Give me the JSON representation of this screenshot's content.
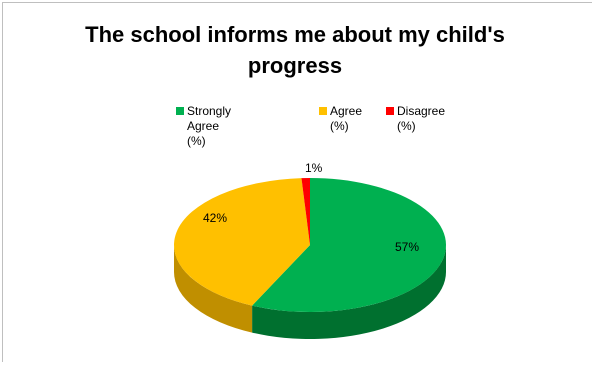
{
  "chart_data": {
    "type": "pie",
    "title_line1": "The school informs me about my child's",
    "title_line2": "progress",
    "legend_position": "top",
    "legend": [
      {
        "line1": "Strongly Agree (%)",
        "line2": "",
        "color": "#00b050"
      },
      {
        "line1": "Agree",
        "line2": "(%)",
        "color": "#ffc000"
      },
      {
        "line1": "Disagree",
        "line2": "(%)",
        "color": "#ff0000"
      }
    ],
    "slices": [
      {
        "name": "Strongly Agree (%)",
        "value": 57,
        "label": "57%",
        "color": "#00b050",
        "side_color": "#00702f"
      },
      {
        "name": "Agree (%)",
        "value": 42,
        "label": "42%",
        "color": "#ffc000",
        "side_color": "#c08f00"
      },
      {
        "name": "Disagree (%)",
        "value": 1,
        "label": "1%",
        "color": "#ff0000",
        "side_color": "#a00000"
      }
    ]
  }
}
